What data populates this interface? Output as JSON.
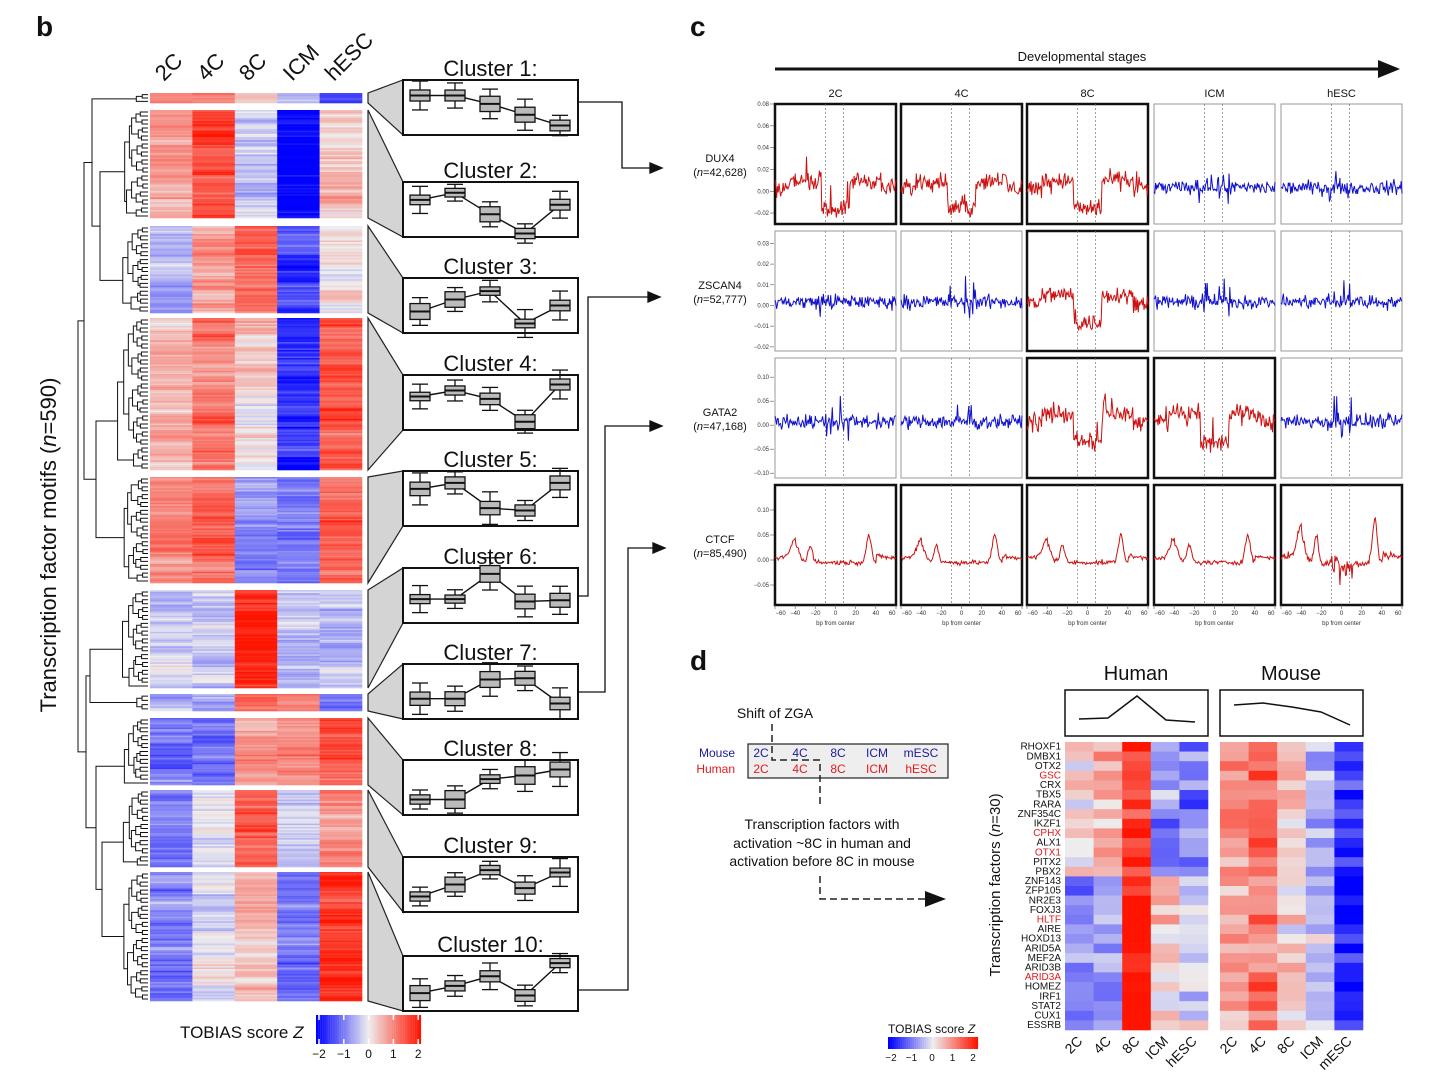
{
  "chart_data": [
    {
      "panel": "b",
      "type": "heatmap",
      "columns": [
        "2C",
        "4C",
        "8C",
        "ICM",
        "hESC"
      ],
      "ylabel_main": "Transcription factor motifs (",
      "ylabel_n": "n",
      "ylabel_rest": "=590)",
      "colorbar": {
        "label": "TOBIAS score ",
        "label_var": "Z",
        "ticks": [
          "−2",
          "−1",
          "0",
          "1",
          "2"
        ],
        "range": [
          -2,
          2
        ],
        "low_color": "#0000ff",
        "mid_color": "#eeeeee",
        "high_color": "#ff0000"
      },
      "clusters": [
        {
          "label": "Cluster 1:",
          "profile": [
            1.0,
            1.0,
            0.3,
            -0.6,
            -1.5
          ]
        },
        {
          "label": "Cluster 2:",
          "profile": [
            0.8,
            1.4,
            -0.4,
            -2.0,
            0.4
          ]
        },
        {
          "label": "Cluster 3:",
          "profile": [
            -0.5,
            0.5,
            1.2,
            -1.5,
            0.0
          ]
        },
        {
          "label": "Cluster 4:",
          "profile": [
            0.5,
            1.0,
            0.3,
            -1.6,
            1.5
          ]
        },
        {
          "label": "Cluster 5:",
          "profile": [
            0.8,
            1.3,
            -0.8,
            -1.0,
            1.3
          ]
        },
        {
          "label": "Cluster 6:",
          "profile": [
            -0.3,
            -0.3,
            1.8,
            -0.5,
            -0.4
          ]
        },
        {
          "label": "Cluster 7:",
          "profile": [
            -0.6,
            -0.6,
            1.0,
            1.1,
            -1.0
          ]
        },
        {
          "label": "Cluster 8:",
          "profile": [
            -1.0,
            -1.0,
            0.7,
            1.0,
            1.5
          ]
        },
        {
          "label": "Cluster 9:",
          "profile": [
            -1.0,
            0.0,
            1.2,
            -0.3,
            1.0
          ]
        },
        {
          "label": "Cluster 10:",
          "profile": [
            -0.8,
            -0.2,
            0.6,
            -1.0,
            1.7
          ]
        }
      ]
    },
    {
      "panel": "c",
      "type": "line",
      "header": "Developmental stages",
      "stages": [
        "2C",
        "4C",
        "8C",
        "ICM",
        "hESC"
      ],
      "xlabel": "bp from center",
      "xlim": [
        -60,
        60
      ],
      "xticks": [
        "−60",
        "−40",
        "−20",
        "0",
        "20",
        "40",
        "60"
      ],
      "red": "#cc1111",
      "blue": "#1111cc",
      "rows": [
        {
          "name": "DUX4",
          "n_label": "n",
          "n_value": "=42,628",
          "ylim": [
            -0.03,
            0.08
          ],
          "yticks": [
            "0.08",
            "0.06",
            "0.04",
            "0.02",
            "0.00",
            "−0.02"
          ],
          "ytick_values": [
            0.08,
            0.06,
            0.04,
            0.02,
            0.0,
            -0.02
          ],
          "active": [
            true,
            true,
            true,
            false,
            false
          ]
        },
        {
          "name": "ZSCAN4",
          "n_label": "n",
          "n_value": "=52,777",
          "ylim": [
            -0.022,
            0.036
          ],
          "yticks": [
            "0.03",
            "0.02",
            "0.01",
            "0.00",
            "−0.01",
            "−0.02"
          ],
          "ytick_values": [
            0.03,
            0.02,
            0.01,
            0.0,
            -0.01,
            -0.02
          ],
          "active": [
            false,
            false,
            true,
            false,
            false
          ]
        },
        {
          "name": "GATA2",
          "n_label": "n",
          "n_value": "=47,168",
          "ylim": [
            -0.11,
            0.14
          ],
          "yticks": [
            "0.10",
            "0.05",
            "0.00",
            "−0.05",
            "−0.10"
          ],
          "ytick_values": [
            0.1,
            0.05,
            0.0,
            -0.05,
            -0.1
          ],
          "active": [
            false,
            false,
            true,
            true,
            false
          ]
        },
        {
          "name": "CTCF",
          "n_label": "n",
          "n_value": "=85,490",
          "ylim": [
            -0.09,
            0.15
          ],
          "yticks": [
            "0.10",
            "0.05",
            "0.00",
            "−0.05"
          ],
          "ytick_values": [
            0.1,
            0.05,
            0.0,
            -0.05
          ],
          "active": [
            true,
            true,
            true,
            true,
            true
          ]
        }
      ]
    },
    {
      "panel": "d",
      "type": "heatmap",
      "diagram": {
        "title": "Shift of ZGA",
        "mouse_label": "Mouse",
        "human_label": "Human",
        "mouse_stages": [
          "2C",
          "4C",
          "8C",
          "ICM",
          "mESC"
        ],
        "human_stages": [
          "2C",
          "4C",
          "8C",
          "ICM",
          "hESC"
        ],
        "mouse_color": "#1a1a9e",
        "human_color": "#e31a1c",
        "caption": [
          "Transcription factors with",
          "activation ~8C in human and",
          "activation before 8C in mouse"
        ]
      },
      "human": {
        "title": "Human",
        "columns": [
          "2C",
          "4C",
          "8C",
          "ICM",
          "hESC"
        ],
        "mean_profile": [
          -0.6,
          -0.5,
          1.7,
          -0.7,
          -0.9
        ]
      },
      "mouse": {
        "title": "Mouse",
        "columns": [
          "2C",
          "4C",
          "8C",
          "ICM",
          "mESC"
        ],
        "mean_profile": [
          0.8,
          1.0,
          0.6,
          0.1,
          -1.2
        ]
      },
      "ylabel_main": "Transcription factors (",
      "ylabel_n": "n",
      "ylabel_rest": "=30)",
      "colorbar": {
        "label": "TOBIAS score ",
        "label_var": "Z",
        "ticks": [
          "−2",
          "−1",
          "0",
          "1",
          "2"
        ]
      },
      "genes": [
        {
          "name": "RHOXF1",
          "highlight": false
        },
        {
          "name": "DMBX1",
          "highlight": false
        },
        {
          "name": "OTX2",
          "highlight": false
        },
        {
          "name": "GSC",
          "highlight": true
        },
        {
          "name": "CRX",
          "highlight": false
        },
        {
          "name": "TBX5",
          "highlight": false
        },
        {
          "name": "RARA",
          "highlight": false
        },
        {
          "name": "ZNF354C",
          "highlight": false
        },
        {
          "name": "IKZF1",
          "highlight": false
        },
        {
          "name": "CPHX",
          "highlight": true
        },
        {
          "name": "ALX1",
          "highlight": false
        },
        {
          "name": "OTX1",
          "highlight": true
        },
        {
          "name": "PITX2",
          "highlight": false
        },
        {
          "name": "PBX2",
          "highlight": false
        },
        {
          "name": "ZNF143",
          "highlight": false
        },
        {
          "name": "ZFP105",
          "highlight": false
        },
        {
          "name": "NR2E3",
          "highlight": false
        },
        {
          "name": "FOXJ3",
          "highlight": false
        },
        {
          "name": "HLTF",
          "highlight": true
        },
        {
          "name": "AIRE",
          "highlight": false
        },
        {
          "name": "HOXD13",
          "highlight": false
        },
        {
          "name": "ARID5A",
          "highlight": false
        },
        {
          "name": "MEF2A",
          "highlight": false
        },
        {
          "name": "ARID3B",
          "highlight": false
        },
        {
          "name": "ARID3A",
          "highlight": true
        },
        {
          "name": "HOMEZ",
          "highlight": false
        },
        {
          "name": "IRF1",
          "highlight": false
        },
        {
          "name": "STAT2",
          "highlight": false
        },
        {
          "name": "CUX1",
          "highlight": false
        },
        {
          "name": "ESSRB",
          "highlight": false
        }
      ],
      "group_profiles": {
        "human_upper": [
          0.3,
          0.6,
          1.7,
          -0.8,
          -1.0
        ],
        "human_lower": [
          -0.8,
          -0.7,
          2.0,
          0.3,
          -0.2
        ],
        "mouse_upper": [
          0.9,
          1.2,
          0.3,
          -0.5,
          -1.5
        ],
        "mouse_lower": [
          0.7,
          1.1,
          0.2,
          -0.3,
          -1.6
        ]
      },
      "highlight_color": "#e31a1c"
    }
  ],
  "panels": {
    "b": "b",
    "c": "c",
    "d": "d"
  }
}
